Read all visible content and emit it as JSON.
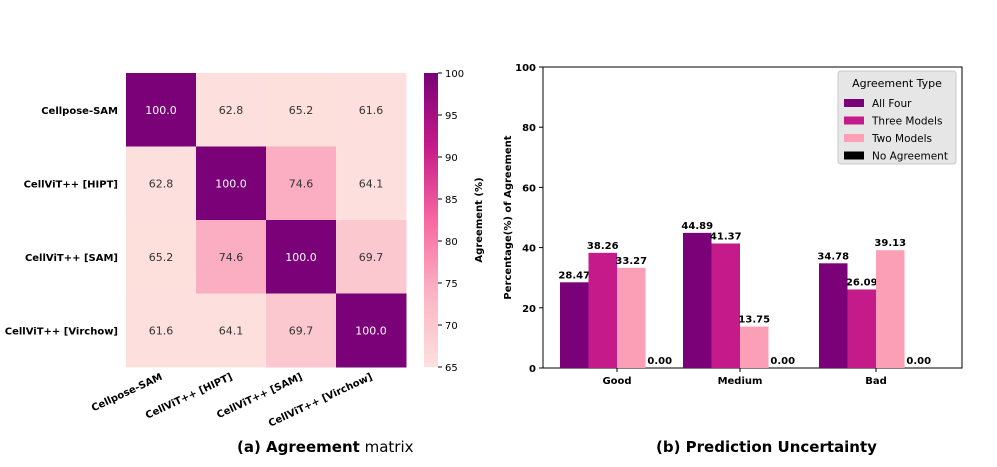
{
  "chart_data": [
    {
      "type": "heatmap",
      "title": "",
      "caption_prefix": "(a) Agreement",
      "caption_suffix": "matrix",
      "rows": [
        "Cellpose-SAM",
        "CellViT++ [HIPT]",
        "CellViT++ [SAM]",
        "CellViT++ [Virchow]"
      ],
      "columns": [
        "Cellpose-SAM",
        "CellViT++ [HIPT]",
        "CellViT++ [SAM]",
        "CellViT++ [Virchow]"
      ],
      "values": [
        [
          100.0,
          62.8,
          65.2,
          61.6
        ],
        [
          62.8,
          100.0,
          74.6,
          64.1
        ],
        [
          65.2,
          74.6,
          100.0,
          69.7
        ],
        [
          61.6,
          64.1,
          69.7,
          100.0
        ]
      ],
      "value_labels": [
        [
          "100.0",
          "62.8",
          "65.2",
          "61.6"
        ],
        [
          "62.8",
          "100.0",
          "74.6",
          "64.1"
        ],
        [
          "65.2",
          "74.6",
          "100.0",
          "69.7"
        ],
        [
          "61.6",
          "64.1",
          "69.7",
          "100.0"
        ]
      ],
      "colorbar": {
        "label": "Agreement (%)",
        "range": [
          65,
          100
        ],
        "ticks": [
          "100",
          "95",
          "90",
          "85",
          "80",
          "75",
          "70",
          "65"
        ],
        "tick_values": [
          100,
          95,
          90,
          85,
          80,
          75,
          70,
          65
        ],
        "colors": [
          "#fde0dd",
          "#fbb4c4",
          "#f768a1",
          "#c51b8a",
          "#7a0177"
        ]
      }
    },
    {
      "type": "bar",
      "title": "",
      "caption": "(b) Prediction Uncertainty",
      "categories": [
        "Good",
        "Medium",
        "Bad"
      ],
      "series": [
        {
          "name": "All Four",
          "color": "#7a0177",
          "values": [
            28.47,
            44.89,
            34.78
          ],
          "labels": [
            "28.47",
            "44.89",
            "34.78"
          ]
        },
        {
          "name": "Three Models",
          "color": "#c51b8a",
          "values": [
            38.26,
            41.37,
            26.09
          ],
          "labels": [
            "38.26",
            "41.37",
            "26.09"
          ]
        },
        {
          "name": "Two Models",
          "color": "#fa9fb5",
          "values": [
            33.27,
            13.75,
            39.13
          ],
          "labels": [
            "33.27",
            "13.75",
            "39.13"
          ]
        },
        {
          "name": "No Agreement",
          "color": "#000000",
          "values": [
            0.0,
            0.0,
            0.0
          ],
          "labels": [
            "0.00",
            "0.00",
            "0.00"
          ]
        }
      ],
      "xlabel": "",
      "ylabel": "Percentage(%) of Agreement",
      "ylim": [
        0,
        100
      ],
      "yticks": [
        "0",
        "20",
        "40",
        "60",
        "80",
        "100"
      ],
      "ytick_values": [
        0,
        20,
        40,
        60,
        80,
        100
      ],
      "legend": {
        "title": "Agreement Type",
        "position": "top-right"
      }
    }
  ]
}
